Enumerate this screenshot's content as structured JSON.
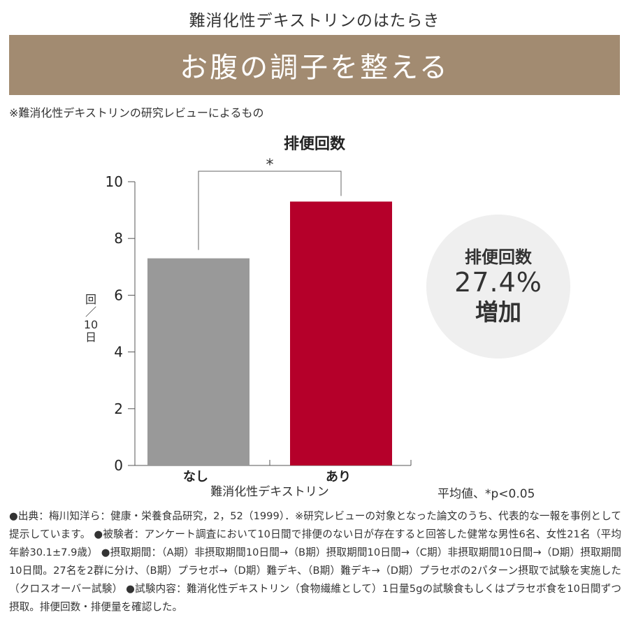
{
  "header": {
    "subtitle": "難消化性デキストリンのはたらき",
    "banner_title": "お腹の調子を整える",
    "source_note": "※難消化性デキストリンの研究レビューによるもの"
  },
  "colors": {
    "banner": "#a28b71",
    "bar_none": "#999999",
    "bar_with": "#b5002a",
    "circle_bg": "#efefef"
  },
  "chart_data": {
    "type": "bar",
    "title": "排便回数",
    "categories": [
      "なし",
      "あり"
    ],
    "values": [
      7.3,
      9.3
    ],
    "xlabel": "難消化性デキストリン",
    "ylabel": [
      "回",
      "／",
      "10",
      "日"
    ],
    "ylim": [
      0,
      10
    ],
    "yticks": [
      "0",
      "2",
      "4",
      "6",
      "8",
      "10"
    ],
    "significance_mark": "*",
    "grid": false
  },
  "highlight": {
    "line1": "排便回数",
    "line2": "27.4%",
    "line3": "増加"
  },
  "average_note": "平均値、*p<0.05",
  "footnote": "●出典：梅川知洋ら：健康・栄養食品研究，2，52（1999）．※研究レビューの対象となった論文のうち、代表的な一報を事例として提示しています。 ●被験者：アンケート調査において10日間で排便のない日が存在すると回答した健常な男性6名、女性21名（平均年齢30.1±7.9歳） ●摂取期間：（A期）非摂取期間10日間→（B期）摂取期間10日間→（C期）非摂取期間10日間→（D期）摂取期間10日間。27名を2群に分け、（B期）プラセボ→（D期）難デキ、（B期）難デキ→（D期）プラセボの2パターン摂取で試験を実施した（クロスオーバー試験） ●試験内容：難消化性デキストリン（食物繊維として）1日量5gの試験食もしくはプラセボ食を10日間ずつ摂取。排便回数・排便量を確認した。"
}
